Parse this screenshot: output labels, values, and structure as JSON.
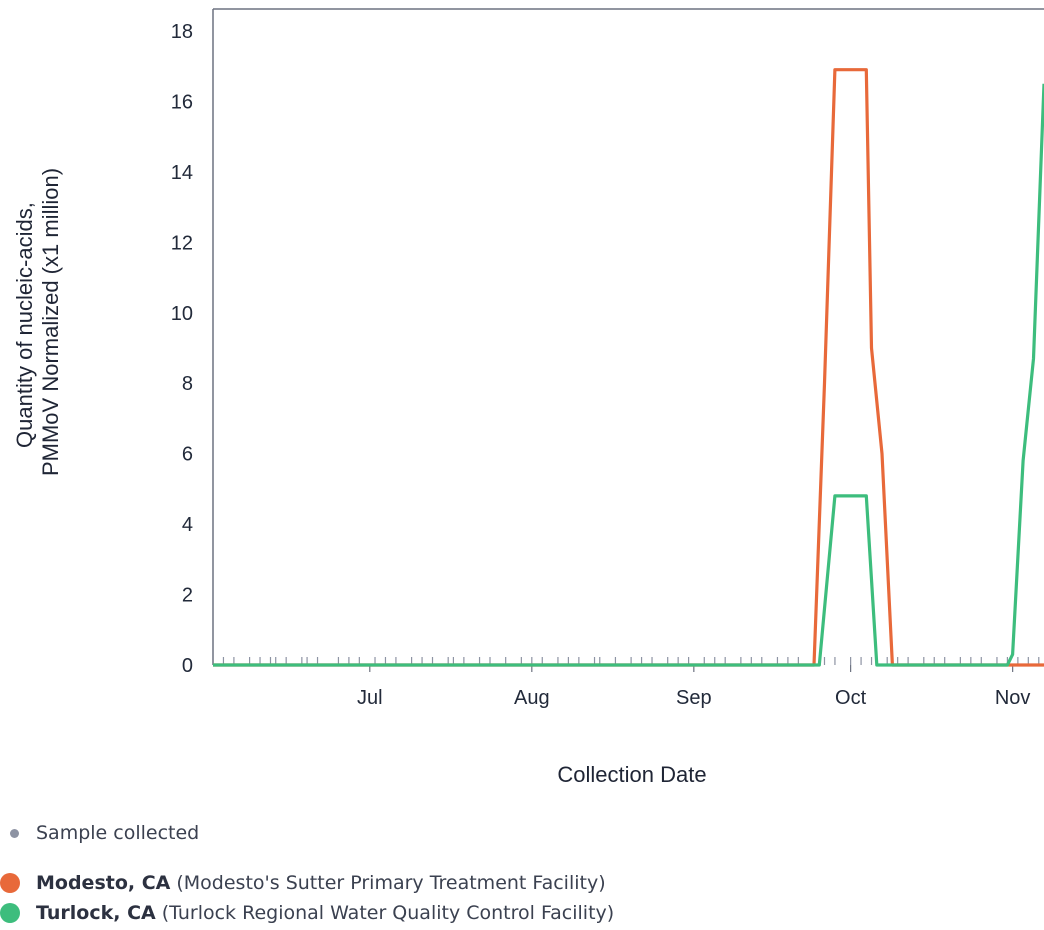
{
  "chart_data": {
    "type": "line",
    "xlabel": "Collection Date",
    "ylabel_lines": [
      "Quantity of nucleic-acids,",
      "PMMoV Normalized (x1 million)"
    ],
    "ylim": [
      0,
      18
    ],
    "y_ticks": [
      0,
      2,
      4,
      6,
      8,
      10,
      12,
      14,
      16,
      18
    ],
    "x_ticks": [
      {
        "label": "Jul",
        "date": "2024-07-01"
      },
      {
        "label": "Aug",
        "date": "2024-08-01"
      },
      {
        "label": "Sep",
        "date": "2024-09-01"
      },
      {
        "label": "Oct",
        "date": "2024-10-01"
      },
      {
        "label": "Nov",
        "date": "2024-11-01"
      }
    ],
    "xlim": [
      "2024-06-01",
      "2024-11-07"
    ],
    "grid": false,
    "series": [
      {
        "name": "Modesto, CA",
        "color": "#e8693a",
        "x": [
          "2024-06-01",
          "2024-09-24",
          "2024-09-26",
          "2024-09-28",
          "2024-10-04",
          "2024-10-05",
          "2024-10-07",
          "2024-10-09",
          "2024-11-07"
        ],
        "y": [
          0,
          0,
          8.0,
          16.9,
          16.9,
          9.0,
          6.0,
          0,
          0
        ]
      },
      {
        "name": "Turlock, CA",
        "color": "#3dbd7d",
        "x": [
          "2024-06-01",
          "2024-09-25",
          "2024-09-28",
          "2024-10-04",
          "2024-10-06",
          "2024-10-31",
          "2024-11-01",
          "2024-11-03",
          "2024-11-05",
          "2024-11-07"
        ],
        "y": [
          0,
          0,
          4.8,
          4.8,
          0,
          0,
          0.3,
          5.8,
          8.7,
          16.5
        ]
      }
    ],
    "sample_dates": [
      "2024-06-03",
      "2024-06-05",
      "2024-06-08",
      "2024-06-10",
      "2024-06-12",
      "2024-06-13",
      "2024-06-15",
      "2024-06-18",
      "2024-06-19",
      "2024-06-21",
      "2024-06-25",
      "2024-06-27",
      "2024-06-29",
      "2024-07-02",
      "2024-07-04",
      "2024-07-06",
      "2024-07-09",
      "2024-07-11",
      "2024-07-13",
      "2024-07-16",
      "2024-07-17",
      "2024-07-19",
      "2024-07-22",
      "2024-07-24",
      "2024-07-27",
      "2024-07-30",
      "2024-08-01",
      "2024-08-03",
      "2024-08-06",
      "2024-08-08",
      "2024-08-10",
      "2024-08-13",
      "2024-08-14",
      "2024-08-17",
      "2024-08-20",
      "2024-08-22",
      "2024-08-24",
      "2024-08-27",
      "2024-08-29",
      "2024-08-31",
      "2024-09-03",
      "2024-09-05",
      "2024-09-07",
      "2024-09-10",
      "2024-09-12",
      "2024-09-14",
      "2024-09-17",
      "2024-09-19",
      "2024-09-21",
      "2024-09-24",
      "2024-09-26",
      "2024-09-28",
      "2024-10-01",
      "2024-10-03",
      "2024-10-05",
      "2024-10-08",
      "2024-10-10",
      "2024-10-12",
      "2024-10-15",
      "2024-10-17",
      "2024-10-19",
      "2024-10-22",
      "2024-10-24",
      "2024-10-26",
      "2024-10-29",
      "2024-10-31",
      "2024-11-02",
      "2024-11-04",
      "2024-11-06"
    ]
  },
  "legend": {
    "sample_label": "Sample collected",
    "sample_color": "#8d93a3",
    "items": [
      {
        "name": "Modesto, CA",
        "facility": "(Modesto's Sutter Primary Treatment Facility)",
        "color": "#e8693a"
      },
      {
        "name": "Turlock, CA",
        "facility": "(Turlock Regional Water Quality Control Facility)",
        "color": "#3dbd7d"
      }
    ]
  }
}
